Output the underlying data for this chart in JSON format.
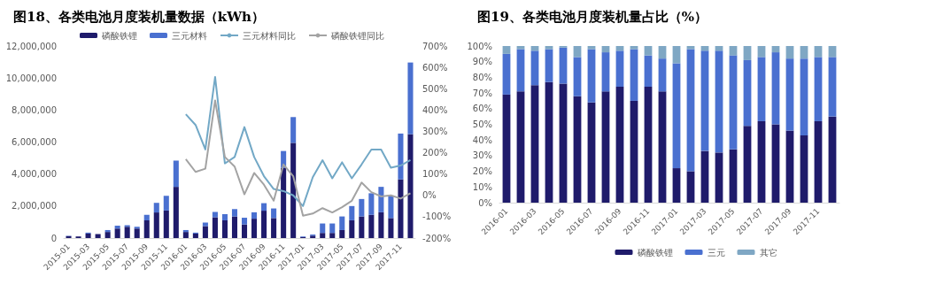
{
  "chart_data": [
    {
      "type": "bar",
      "title": "图18、各类电池月度装机量数据（kWh）",
      "stacked": true,
      "legend": "top",
      "marker": "none",
      "line_style": "solid",
      "grid": false,
      "categories": [
        "2015-01",
        null,
        "2015-03",
        null,
        "2015-05",
        null,
        "2015-07",
        null,
        "2015-09",
        null,
        "2015-11",
        null,
        "2016-01",
        null,
        "2016-03",
        null,
        "2016-05",
        null,
        "2016-07",
        null,
        "2016-09",
        null,
        "2016-11",
        null,
        "2017-01",
        null,
        "2017-03",
        null,
        "2017-05",
        null,
        "2017-07",
        null,
        "2017-09",
        null,
        "2017-11",
        null
      ],
      "ylim": [
        0,
        12000000
      ],
      "yticks": [
        {
          "value": 0,
          "label": "0"
        },
        {
          "value": 2000000,
          "label": "2,000,000"
        },
        {
          "value": 4000000,
          "label": "4,000,000"
        },
        {
          "value": 6000000,
          "label": "6,000,000"
        },
        {
          "value": 8000000,
          "label": "8,000,000"
        },
        {
          "value": 10000000,
          "label": "10,000,000"
        },
        {
          "value": 12000000,
          "label": "12,000,000"
        }
      ],
      "y2lim": [
        -200,
        700
      ],
      "y2ticks": [
        {
          "value": -200,
          "label": "-200%"
        },
        {
          "value": -100,
          "label": "-100%"
        },
        {
          "value": 0,
          "label": "0%"
        },
        {
          "value": 100,
          "label": "100%"
        },
        {
          "value": 200,
          "label": "200%"
        },
        {
          "value": 300,
          "label": "300%"
        },
        {
          "value": 400,
          "label": "400%"
        },
        {
          "value": 500,
          "label": "500%"
        },
        {
          "value": 600,
          "label": "600%"
        },
        {
          "value": 700,
          "label": "700%"
        }
      ],
      "series": [
        {
          "name": "磷酸铁锂",
          "type": "bar",
          "color": "#1f1b6b",
          "values": [
            120000,
            100000,
            280000,
            250000,
            380000,
            600000,
            700000,
            600000,
            1100000,
            1600000,
            1720000,
            3200000,
            380000,
            280000,
            740000,
            1300000,
            1100000,
            1350000,
            850000,
            1210000,
            1710000,
            1250000,
            4380000,
            5950000,
            60000,
            150000,
            320000,
            320000,
            500000,
            1110000,
            1350000,
            1450000,
            1610000,
            1250000,
            3670000,
            6490000
          ]
        },
        {
          "name": "三元材料",
          "type": "bar",
          "color": "#4a70d0",
          "values": [
            20000,
            null,
            60000,
            null,
            120000,
            170000,
            100000,
            100000,
            350000,
            600000,
            920000,
            1640000,
            120000,
            60000,
            230000,
            330000,
            390000,
            460000,
            420000,
            400000,
            470000,
            600000,
            1060000,
            1610000,
            40000,
            70000,
            590000,
            590000,
            850000,
            890000,
            1090000,
            1350000,
            1590000,
            1410000,
            2860000,
            4480000
          ]
        },
        {
          "name": "三元材料同比",
          "type": "line",
          "axis": "y2",
          "color": "#72a8c6",
          "values": [
            null,
            null,
            null,
            null,
            null,
            null,
            null,
            null,
            null,
            null,
            null,
            null,
            380,
            330,
            215,
            555,
            150,
            180,
            320,
            180,
            90,
            30,
            20,
            0,
            -50,
            85,
            165,
            80,
            155,
            80,
            145,
            215,
            215,
            130,
            140,
            165
          ]
        },
        {
          "name": "磷酸铁锂同比",
          "type": "line",
          "axis": "y2",
          "color": "#a3a3a3",
          "values": [
            null,
            null,
            null,
            null,
            null,
            null,
            null,
            null,
            null,
            null,
            null,
            null,
            170,
            110,
            125,
            445,
            180,
            135,
            5,
            105,
            50,
            -25,
            145,
            90,
            -95,
            -85,
            -60,
            -80,
            -55,
            -25,
            60,
            15,
            -5,
            0,
            -15,
            10
          ]
        }
      ]
    },
    {
      "type": "bar",
      "title": "图19、各类电池月度装机量占比（%）",
      "stacked": true,
      "legend": "bottom",
      "grid": false,
      "categories": [
        "2016-01",
        null,
        "2016-03",
        null,
        "2016-05",
        null,
        "2016-07",
        null,
        "2016-09",
        null,
        "2016-11",
        null,
        "2017-01",
        null,
        "2017-03",
        null,
        "2017-05",
        null,
        "2017-07",
        null,
        "2017-09",
        null,
        "2017-11",
        null
      ],
      "ylim": [
        0,
        100
      ],
      "yticks": [
        {
          "value": 0,
          "label": "0%"
        },
        {
          "value": 10,
          "label": "10%"
        },
        {
          "value": 20,
          "label": "20%"
        },
        {
          "value": 30,
          "label": "30%"
        },
        {
          "value": 40,
          "label": "40%"
        },
        {
          "value": 50,
          "label": "50%"
        },
        {
          "value": 60,
          "label": "60%"
        },
        {
          "value": 70,
          "label": "70%"
        },
        {
          "value": 80,
          "label": "80%"
        },
        {
          "value": 90,
          "label": "90%"
        },
        {
          "value": 100,
          "label": "100%"
        }
      ],
      "series": [
        {
          "name": "磷酸铁锂",
          "color": "#1f1b6b",
          "values": [
            69,
            71,
            75,
            77,
            76,
            68,
            64,
            71,
            74,
            65,
            74,
            71,
            22,
            20,
            33,
            32,
            34,
            49,
            52,
            50,
            46,
            43,
            52,
            55
          ]
        },
        {
          "name": "三元",
          "color": "#4a70d0",
          "values": [
            26,
            27,
            22,
            21,
            23,
            25,
            34,
            25,
            23,
            33,
            20,
            21,
            67,
            78,
            64,
            65,
            60,
            42,
            41,
            46,
            46,
            49,
            41,
            38
          ]
        },
        {
          "name": "其它",
          "color": "#7fa7c4",
          "values": [
            5,
            2,
            3,
            2,
            1,
            7,
            2,
            4,
            3,
            2,
            6,
            8,
            11,
            2,
            3,
            3,
            6,
            9,
            7,
            4,
            8,
            8,
            7,
            7
          ]
        }
      ]
    }
  ]
}
